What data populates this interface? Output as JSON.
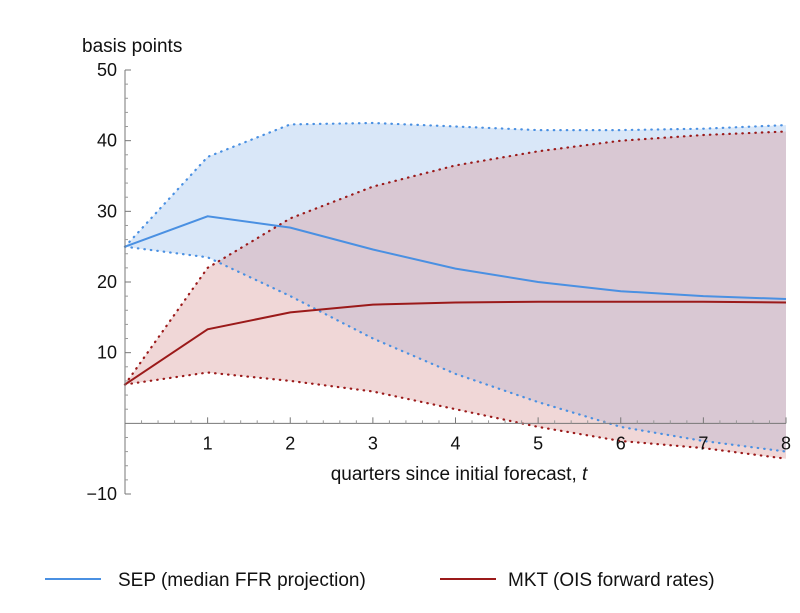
{
  "chart_data": {
    "type": "line",
    "title": "",
    "xlabel": "quarters since initial forecast, ",
    "xlabel_var": "t",
    "ylabel": "basis points",
    "xlim": [
      0,
      8
    ],
    "ylim": [
      -10,
      50
    ],
    "x_ticks": [
      1,
      2,
      3,
      4,
      5,
      6,
      7,
      8
    ],
    "y_ticks": [
      -10,
      10,
      20,
      30,
      40,
      50
    ],
    "y_tick_labels": [
      "−10",
      "10",
      "20",
      "30",
      "40",
      "50"
    ],
    "grid": false,
    "legend_position": "bottom",
    "x": [
      0,
      1,
      2,
      3,
      4,
      5,
      6,
      7,
      8
    ],
    "series": [
      {
        "name": "SEP (median FFR projection)",
        "color": "#4a90e2",
        "band_color": "#9fc3ee",
        "values": [
          25.0,
          29.3,
          27.7,
          24.6,
          21.9,
          20.0,
          18.7,
          18.0,
          17.6
        ],
        "upper": [
          25.0,
          37.7,
          42.3,
          42.5,
          42.0,
          41.5,
          41.5,
          41.7,
          42.2
        ],
        "lower": [
          25.0,
          23.5,
          18.0,
          12.0,
          7.0,
          3.0,
          -0.5,
          -2.5,
          -4.0
        ]
      },
      {
        "name": "MKT (OIS forward rates)",
        "color": "#9b1a1a",
        "band_color": "#d99c9c",
        "values": [
          5.5,
          13.3,
          15.7,
          16.8,
          17.1,
          17.2,
          17.2,
          17.2,
          17.1
        ],
        "upper": [
          5.5,
          22.0,
          29.0,
          33.5,
          36.5,
          38.5,
          40.0,
          40.8,
          41.3
        ],
        "lower": [
          5.5,
          7.2,
          6.0,
          4.5,
          2.0,
          -0.5,
          -2.5,
          -3.5,
          -5.0
        ]
      }
    ]
  }
}
